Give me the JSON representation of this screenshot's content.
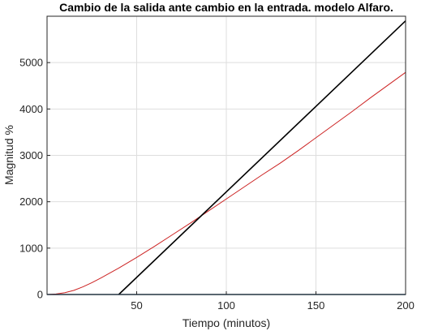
{
  "chart_data": {
    "type": "line",
    "title": "Cambio de la salida ante cambio en la entrada. modelo Alfaro.",
    "xlabel": "Tiempo (minutos)",
    "ylabel": "Magnitud %",
    "xlim": [
      0,
      200
    ],
    "ylim": [
      0,
      6000
    ],
    "xticks": [
      50,
      100,
      150,
      200
    ],
    "xtick_labels": [
      "50",
      "100",
      "150",
      "200"
    ],
    "yticks": [
      0,
      1000,
      2000,
      3000,
      4000,
      5000
    ],
    "ytick_labels": [
      "0",
      "1000",
      "2000",
      "3000",
      "4000",
      "5000"
    ],
    "grid": true,
    "legend": "none",
    "series": [
      {
        "color": "#cc2222",
        "x": [
          0,
          5,
          10,
          15,
          20,
          25,
          30,
          40,
          50,
          60,
          70,
          80,
          90,
          100,
          110,
          120,
          130,
          140,
          150,
          160,
          170,
          180,
          190,
          200
        ],
        "y": [
          0,
          10,
          40,
          90,
          165,
          255,
          355,
          570,
          800,
          1040,
          1290,
          1540,
          1800,
          2060,
          2320,
          2580,
          2830,
          3100,
          3380,
          3660,
          3940,
          4230,
          4510,
          4790
        ]
      },
      {
        "color": "#000000",
        "x": [
          40,
          200
        ],
        "y": [
          0,
          5900
        ]
      },
      {
        "color": "#1f4e79",
        "x": [
          0,
          200
        ],
        "y": [
          0,
          0
        ]
      }
    ]
  }
}
